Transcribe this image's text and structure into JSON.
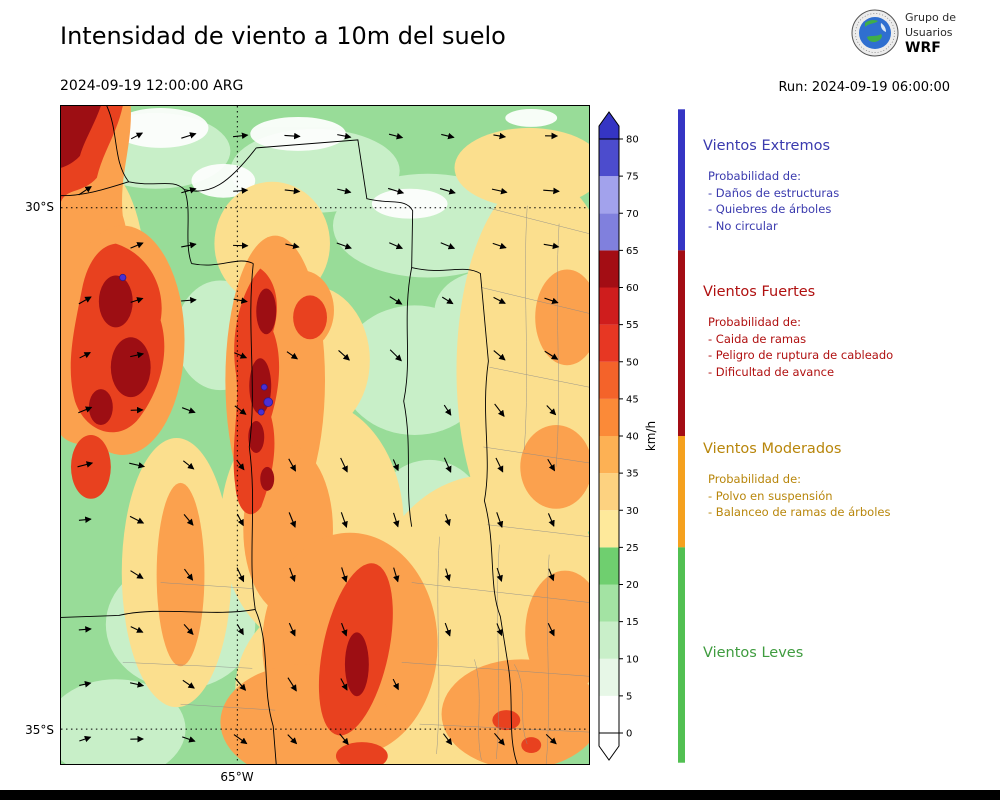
{
  "header": {
    "title": "Intensidad de viento a 10m del suelo",
    "valid_time": "2024-09-19 12:00:00 ARG",
    "run_label": "Run: 2024-09-19 06:00:00"
  },
  "logo": {
    "line1": "Grupo de",
    "line2": "Usuarios",
    "line3": "WRF"
  },
  "map_axes": {
    "lat_top": "30°S",
    "lat_bottom": "35°S",
    "lon": "65°W"
  },
  "colorbar": {
    "unit": "km/h",
    "ticks": [
      0,
      5,
      10,
      15,
      20,
      25,
      30,
      35,
      40,
      45,
      50,
      55,
      60,
      65,
      70,
      75,
      80
    ],
    "above_color": "#3535C4",
    "below_color": "#FFFFFF",
    "segments": [
      {
        "from": 0,
        "to": 5,
        "color": "#FFFFFF"
      },
      {
        "from": 5,
        "to": 10,
        "color": "#E7F7E7"
      },
      {
        "from": 10,
        "to": 15,
        "color": "#C9EFC9"
      },
      {
        "from": 15,
        "to": 20,
        "color": "#A3E3A3"
      },
      {
        "from": 20,
        "to": 25,
        "color": "#6FCF6F"
      },
      {
        "from": 25,
        "to": 30,
        "color": "#FEE99B"
      },
      {
        "from": 30,
        "to": 35,
        "color": "#FDD280"
      },
      {
        "from": 35,
        "to": 40,
        "color": "#FDB154"
      },
      {
        "from": 40,
        "to": 45,
        "color": "#FB8A38"
      },
      {
        "from": 45,
        "to": 50,
        "color": "#F4632A"
      },
      {
        "from": 50,
        "to": 55,
        "color": "#E73723"
      },
      {
        "from": 55,
        "to": 60,
        "color": "#CF1D1D"
      },
      {
        "from": 60,
        "to": 65,
        "color": "#A30D14"
      },
      {
        "from": 65,
        "to": 70,
        "color": "#8080DD"
      },
      {
        "from": 70,
        "to": 75,
        "color": "#A2A2EC"
      },
      {
        "from": 75,
        "to": 80,
        "color": "#4C4CCD"
      }
    ]
  },
  "legend": {
    "bar_segments": [
      {
        "range": [
          65,
          84
        ],
        "color": "#3535C4"
      },
      {
        "range": [
          40,
          65
        ],
        "color": "#A30D14"
      },
      {
        "range": [
          25,
          40
        ],
        "color": "#F5A11E"
      },
      {
        "range": [
          -4,
          25
        ],
        "color": "#52C052"
      }
    ],
    "sections": [
      {
        "title": "Vientos Extremos",
        "color": "#3A3AAE",
        "subtitle": "Probabilidad de:",
        "items": [
          "- Daños de estructuras",
          "- Quiebres de árboles",
          "- No circular"
        ]
      },
      {
        "title": "Vientos Fuertes",
        "color": "#B01010",
        "subtitle": "Probabilidad de:",
        "items": [
          "- Caida de ramas",
          "- Peligro de ruptura de cableado",
          "- Dificultad de avance"
        ]
      },
      {
        "title": "Vientos Moderados",
        "color": "#B8860B",
        "subtitle": "Probabilidad de:",
        "items": [
          "- Polvo en suspensión",
          "- Balanceo de ramas de árboles"
        ]
      },
      {
        "title": "Vientos Leves",
        "color": "#3F9C3F",
        "subtitle": "",
        "items": []
      }
    ]
  }
}
